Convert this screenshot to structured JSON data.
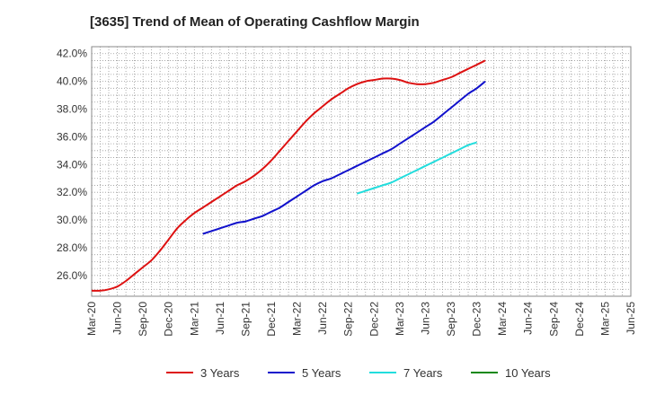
{
  "chart_data": {
    "type": "line",
    "title": "[3635]  Trend of Mean of Operating Cashflow Margin",
    "xlabel": "",
    "ylabel": "",
    "ylim": [
      24.5,
      42.5
    ],
    "grid": true,
    "legend_position": "bottom",
    "x_ticks": [
      "Mar-20",
      "Jun-20",
      "Sep-20",
      "Dec-20",
      "Mar-21",
      "Jun-21",
      "Sep-21",
      "Dec-21",
      "Mar-22",
      "Jun-22",
      "Sep-22",
      "Dec-22",
      "Mar-23",
      "Jun-23",
      "Sep-23",
      "Dec-23",
      "Mar-24",
      "Jun-24",
      "Sep-24",
      "Dec-24",
      "Mar-25",
      "Jun-25"
    ],
    "y_ticks": [
      26.0,
      28.0,
      30.0,
      32.0,
      34.0,
      36.0,
      38.0,
      40.0,
      42.0
    ],
    "y_tick_labels": [
      "26.0%",
      "28.0%",
      "30.0%",
      "32.0%",
      "34.0%",
      "36.0%",
      "38.0%",
      "40.0%",
      "42.0%"
    ],
    "series": [
      {
        "name": "3 Years",
        "color": "#dd1111",
        "x_start_index": 0,
        "values": [
          24.9,
          24.9,
          25.0,
          25.2,
          25.6,
          26.1,
          26.6,
          27.1,
          27.8,
          28.6,
          29.4,
          30.0,
          30.5,
          30.9,
          31.3,
          31.7,
          32.1,
          32.5,
          32.8,
          33.2,
          33.7,
          34.3,
          35.0,
          35.7,
          36.4,
          37.1,
          37.7,
          38.2,
          38.7,
          39.1,
          39.5,
          39.8,
          40.0,
          40.1,
          40.2,
          40.2,
          40.1,
          39.9,
          39.8,
          39.8,
          39.9,
          40.1,
          40.3,
          40.6,
          40.9,
          41.2,
          41.5
        ]
      },
      {
        "name": "5 Years",
        "color": "#1111cc",
        "x_start_index": 13,
        "values": [
          29.0,
          29.2,
          29.4,
          29.6,
          29.8,
          29.9,
          30.1,
          30.3,
          30.6,
          30.9,
          31.3,
          31.7,
          32.1,
          32.5,
          32.8,
          33.0,
          33.3,
          33.6,
          33.9,
          34.2,
          34.5,
          34.8,
          35.1,
          35.5,
          35.9,
          36.3,
          36.7,
          37.1,
          37.6,
          38.1,
          38.6,
          39.1,
          39.5,
          40.0
        ]
      },
      {
        "name": "7 Years",
        "color": "#22dddd",
        "x_start_index": 31,
        "values": [
          31.9,
          32.1,
          32.3,
          32.5,
          32.7,
          33.0,
          33.3,
          33.6,
          33.9,
          34.2,
          34.5,
          34.8,
          35.1,
          35.4,
          35.6
        ]
      },
      {
        "name": "10 Years",
        "color": "#118811",
        "x_start_index": 0,
        "values": []
      }
    ]
  }
}
